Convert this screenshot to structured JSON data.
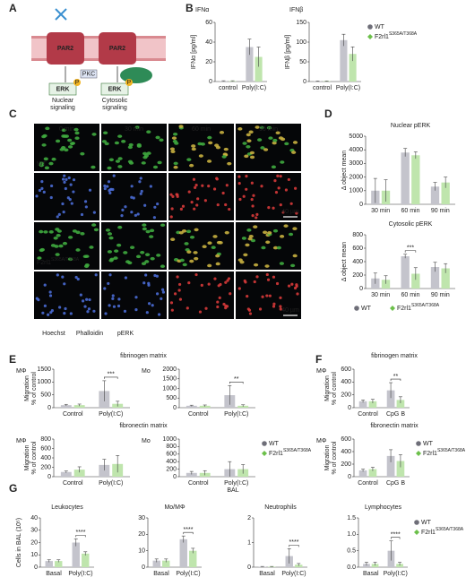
{
  "figure": {
    "panel_labels": [
      "A",
      "B",
      "C",
      "D",
      "E",
      "F",
      "G"
    ],
    "headings": [
      "fibrinogen matrix",
      "fibronectin matrix",
      "fibrinogen matrix",
      "fibronectin matrix",
      "BAL"
    ]
  },
  "diagram": {
    "receptors": [
      "PAR2",
      "PAR2"
    ],
    "kinase": "PKC",
    "erk": [
      "ERK",
      "ERK"
    ],
    "phospho": [
      "P",
      "P"
    ],
    "outputs": [
      [
        "Nuclear",
        "signaling"
      ],
      [
        "Cytosolic",
        "signaling"
      ]
    ]
  },
  "microscopy": {
    "times": [
      "0 min",
      "30 min",
      "60 min",
      "90 min"
    ],
    "genotypes": [
      "WT",
      "F2rl1"
    ],
    "genotype_superscript": "S365A/T368A",
    "scale_bars": [
      "40 µm",
      "40 µm"
    ],
    "channels": [
      {
        "name": "Hoechst",
        "color": "#4a6cd4"
      },
      {
        "name": "Phalloidin",
        "color": "#3faa3f"
      },
      {
        "name": "pERK",
        "color": "#d63a3a"
      }
    ]
  },
  "chart_data": [
    {
      "type": "bar",
      "title": "IFNα",
      "ylabel": "IFNα [pg/ml]",
      "categories": [
        "control",
        "Poly(I:C)"
      ],
      "series": [
        {
          "color": "#c4c4cc",
          "values": [
            0.5,
            35
          ],
          "errors": [
            0.3,
            8
          ]
        },
        {
          "color": "#bfe5ad",
          "values": [
            0.5,
            25
          ],
          "errors": [
            0.3,
            10
          ]
        }
      ],
      "ylim": [
        0,
        60
      ],
      "yticks": [
        0,
        20,
        40,
        60
      ]
    },
    {
      "type": "bar",
      "title": "IFNβ",
      "ylabel": "IFNβ [pg/ml]",
      "categories": [
        "control",
        "Poly(I:C)"
      ],
      "series": [
        {
          "name": "WT",
          "marker": "circle",
          "marker_color": "#6e6e78",
          "color": "#c4c4cc",
          "values": [
            1,
            105
          ],
          "errors": [
            0.5,
            15
          ]
        },
        {
          "name": "F2rl1",
          "superscript": "S365A/T368A",
          "marker": "diamond",
          "marker_color": "#6cc04a",
          "color": "#bfe5ad",
          "values": [
            1,
            70
          ],
          "errors": [
            0.5,
            18
          ]
        }
      ],
      "ylim": [
        0,
        150
      ],
      "yticks": [
        0,
        50,
        100,
        150
      ],
      "legend": "right"
    },
    {
      "type": "bar",
      "title": "Nuclear pERK",
      "ylabel": "Δ object mean",
      "categories": [
        "30 min",
        "60 min",
        "90 min"
      ],
      "series": [
        {
          "color": "#c4c4cc",
          "values": [
            1000,
            3800,
            1300
          ],
          "errors": [
            900,
            300,
            300
          ]
        },
        {
          "color": "#bfe5ad",
          "values": [
            1000,
            3600,
            1600
          ],
          "errors": [
            800,
            250,
            400
          ]
        }
      ],
      "ylim": [
        0,
        5000
      ],
      "yticks": [
        0,
        1000,
        2000,
        3000,
        4000,
        5000
      ]
    },
    {
      "type": "bar",
      "title": "Cytosolic pERK",
      "ylabel": "Δ object mean",
      "categories": [
        "30 min",
        "60 min",
        "90 min"
      ],
      "series": [
        {
          "name": "WT",
          "marker": "circle",
          "marker_color": "#6e6e78",
          "color": "#c4c4cc",
          "values": [
            150,
            480,
            320
          ],
          "errors": [
            80,
            30,
            70
          ]
        },
        {
          "name": "F2rl1",
          "superscript": "S365A/T368A",
          "marker": "diamond",
          "marker_color": "#6cc04a",
          "color": "#bfe5ad",
          "values": [
            130,
            220,
            300
          ],
          "errors": [
            60,
            90,
            70
          ]
        }
      ],
      "ylim": [
        0,
        800
      ],
      "yticks": [
        0,
        200,
        400,
        600,
        800
      ],
      "annotations": [
        {
          "category": "60 min",
          "text": "***"
        }
      ],
      "legend": "bottom"
    },
    {
      "type": "bar",
      "title": "MΦ",
      "ylabel": [
        "Migration",
        "% of control"
      ],
      "categories": [
        "Control",
        "Poly(I:C)"
      ],
      "series": [
        {
          "color": "#c4c4cc",
          "values": [
            100,
            650
          ],
          "errors": [
            30,
            400
          ]
        },
        {
          "color": "#bfe5ad",
          "values": [
            100,
            150
          ],
          "errors": [
            40,
            100
          ]
        }
      ],
      "ylim": [
        0,
        1500
      ],
      "yticks": [
        0,
        500,
        1000,
        1500
      ],
      "annotations": [
        {
          "category": "Poly(I:C)",
          "text": "***"
        }
      ]
    },
    {
      "type": "bar",
      "title": "Mo",
      "categories": [
        "Control",
        "Poly(I:C)"
      ],
      "series": [
        {
          "color": "#c4c4cc",
          "values": [
            100,
            650
          ],
          "errors": [
            30,
            500
          ]
        },
        {
          "color": "#bfe5ad",
          "values": [
            100,
            100
          ],
          "errors": [
            40,
            50
          ]
        }
      ],
      "ylim": [
        0,
        2000
      ],
      "yticks": [
        0,
        500,
        1000,
        1500,
        2000
      ],
      "annotations": [
        {
          "category": "Poly(I:C)",
          "text": "**"
        }
      ]
    },
    {
      "type": "bar",
      "title": "MΦ",
      "ylabel": [
        "Migration",
        "% of control"
      ],
      "categories": [
        "Control",
        "Poly(I:C)"
      ],
      "series": [
        {
          "color": "#c4c4cc",
          "values": [
            100,
            250
          ],
          "errors": [
            20,
            120
          ]
        },
        {
          "color": "#bfe5ad",
          "values": [
            150,
            270
          ],
          "errors": [
            60,
            180
          ]
        }
      ],
      "ylim": [
        0,
        800
      ],
      "yticks": [
        0,
        200,
        400,
        600,
        800
      ]
    },
    {
      "type": "bar",
      "title": "Mo",
      "categories": [
        "Control",
        "Poly(I:C)"
      ],
      "series": [
        {
          "name": "WT",
          "marker": "circle",
          "marker_color": "#6e6e78",
          "color": "#c4c4cc",
          "values": [
            100,
            200
          ],
          "errors": [
            40,
            200
          ]
        },
        {
          "name": "F2rl1",
          "superscript": "S365A/T368A",
          "marker": "diamond",
          "marker_color": "#6cc04a",
          "color": "#bfe5ad",
          "values": [
            100,
            200
          ],
          "errors": [
            60,
            120
          ]
        }
      ],
      "ylim": [
        0,
        1000
      ],
      "yticks": [
        0,
        200,
        400,
        600,
        800,
        1000
      ],
      "legend": "right"
    },
    {
      "type": "bar",
      "title": "MΦ",
      "ylabel": [
        "Migration",
        "% of control"
      ],
      "categories": [
        "Control",
        "CpG B"
      ],
      "series": [
        {
          "color": "#c4c4cc",
          "values": [
            100,
            270
          ],
          "errors": [
            20,
            120
          ]
        },
        {
          "color": "#bfe5ad",
          "values": [
            100,
            120
          ],
          "errors": [
            30,
            50
          ]
        }
      ],
      "ylim": [
        0,
        600
      ],
      "yticks": [
        0,
        200,
        400,
        600
      ],
      "annotations": [
        {
          "category": "CpG B",
          "text": "**"
        }
      ]
    },
    {
      "type": "bar",
      "title": "MΦ",
      "ylabel": [
        "Migration",
        "% of control"
      ],
      "categories": [
        "Control",
        "CpG B"
      ],
      "series": [
        {
          "name": "WT",
          "marker": "circle",
          "marker_color": "#6e6e78",
          "color": "#c4c4cc",
          "values": [
            100,
            330
          ],
          "errors": [
            20,
            100
          ]
        },
        {
          "name": "F2rl1",
          "superscript": "S365A/T368A",
          "marker": "diamond",
          "marker_color": "#6cc04a",
          "color": "#bfe5ad",
          "values": [
            120,
            250
          ],
          "errors": [
            30,
            100
          ]
        }
      ],
      "ylim": [
        0,
        600
      ],
      "yticks": [
        0,
        200,
        400,
        600
      ],
      "legend": "right"
    },
    {
      "type": "bar",
      "title": "Leukocytes",
      "ylabel": "Cells in BAL (10⁵)",
      "categories": [
        "Basal",
        "Poly(I:C)"
      ],
      "series": [
        {
          "color": "#c4c4cc",
          "values": [
            5,
            20
          ],
          "errors": [
            1,
            3
          ]
        },
        {
          "color": "#bfe5ad",
          "values": [
            5,
            11
          ],
          "errors": [
            1,
            1.5
          ]
        }
      ],
      "ylim": [
        0,
        40
      ],
      "yticks": [
        0,
        10,
        20,
        30,
        40
      ],
      "annotations": [
        {
          "category": "Poly(I:C)",
          "text": "****"
        }
      ]
    },
    {
      "type": "bar",
      "title": "Mo/MΦ",
      "categories": [
        "Basal",
        "Poly(I:C)"
      ],
      "series": [
        {
          "color": "#c4c4cc",
          "values": [
            4,
            17
          ],
          "errors": [
            1,
            2
          ]
        },
        {
          "color": "#bfe5ad",
          "values": [
            4,
            10
          ],
          "errors": [
            1,
            1.5
          ]
        }
      ],
      "ylim": [
        0,
        30
      ],
      "yticks": [
        0,
        10,
        20,
        30
      ],
      "annotations": [
        {
          "category": "Poly(I:C)",
          "text": "****"
        }
      ]
    },
    {
      "type": "bar",
      "title": "Neutrophils",
      "categories": [
        "Basal",
        "Poly(I:C)"
      ],
      "series": [
        {
          "color": "#c4c4cc",
          "values": [
            0.02,
            0.45
          ],
          "errors": [
            0.01,
            0.3
          ]
        },
        {
          "color": "#bfe5ad",
          "values": [
            0.02,
            0.1
          ],
          "errors": [
            0.01,
            0.05
          ]
        }
      ],
      "ylim": [
        0,
        2
      ],
      "yticks": [
        0,
        1,
        2
      ],
      "annotations": [
        {
          "category": "Poly(I:C)",
          "text": "****"
        }
      ]
    },
    {
      "type": "bar",
      "title": "Lymphocytes",
      "categories": [
        "Basal",
        "Poly(I:C)"
      ],
      "series": [
        {
          "name": "WT",
          "marker": "circle",
          "marker_color": "#6e6e78",
          "color": "#c4c4cc",
          "values": [
            0.1,
            0.5
          ],
          "errors": [
            0.05,
            0.3
          ]
        },
        {
          "name": "F2rl1",
          "superscript": "S365A/T368A",
          "marker": "diamond",
          "marker_color": "#6cc04a",
          "color": "#bfe5ad",
          "values": [
            0.1,
            0.1
          ],
          "errors": [
            0.05,
            0.05
          ]
        }
      ],
      "ylim": [
        0,
        1.5
      ],
      "yticks": [
        {
          "value": 0,
          "label": "0.0"
        },
        0.5,
        {
          "value": 1,
          "label": "1.0"
        },
        1.5
      ],
      "annotations": [
        {
          "category": "Poly(I:C)",
          "text": "****"
        }
      ],
      "legend": "right"
    }
  ]
}
